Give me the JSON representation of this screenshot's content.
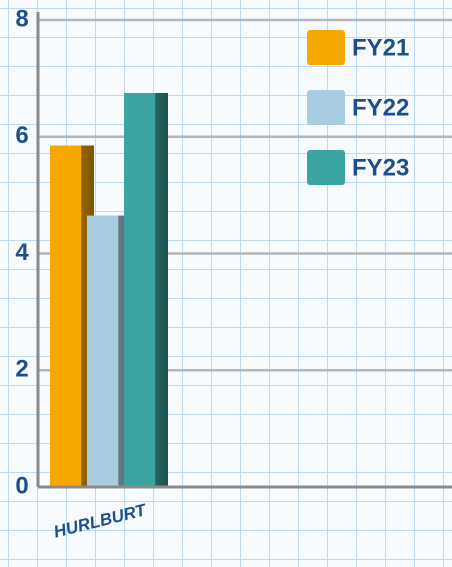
{
  "chart_data": {
    "type": "bar",
    "categories": [
      "HURLBURT"
    ],
    "series": [
      {
        "name": "FY21",
        "color": "#f7a800",
        "values": [
          5.85
        ]
      },
      {
        "name": "FY22",
        "color": "#a8cde0",
        "values": [
          4.65
        ]
      },
      {
        "name": "FY23",
        "color": "#3aa5a0",
        "values": [
          6.75
        ]
      }
    ],
    "ylim": [
      0,
      8
    ],
    "yticks": [
      0,
      2,
      4,
      6,
      8
    ],
    "grid": true,
    "legend": "upper right"
  }
}
